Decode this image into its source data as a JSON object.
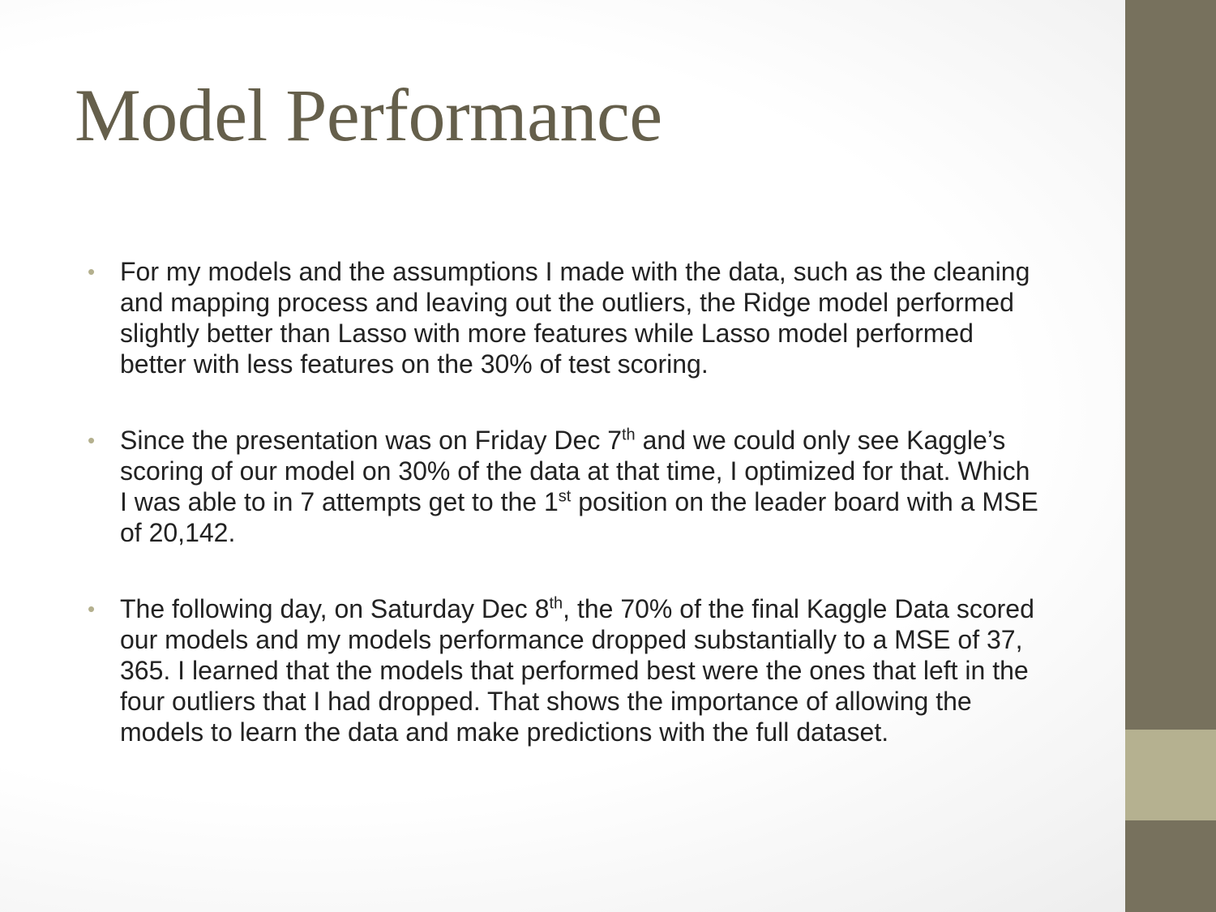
{
  "slide": {
    "title": "Model Performance",
    "bullet_glyph": "•",
    "bullets": [
      {
        "text": "For my models and the assumptions I made with the data, such as the cleaning and mapping process and leaving out the outliers, the Ridge model performed slightly better than Lasso with more features while Lasso model performed better with less features  on the 30% of test scoring."
      },
      {
        "text_a": "Since the presentation was on Friday Dec 7",
        "sup_a": "th",
        "text_b": " and we could only see Kaggle’s scoring of our model on 30% of the data at that time, I optimized for that. Which I was able to in 7 attempts get to the 1",
        "sup_b": "st",
        "text_c": " position on the leader board with a MSE of 20,142."
      },
      {
        "text_a": "The following day, on Saturday Dec 8",
        "sup_a": "th",
        "text_b": ", the 70% of the final Kaggle Data scored our models and my models performance dropped substantially to a MSE of 37, 365. I learned that the models that performed best were the ones that left in the four outliers that I had dropped. That shows the importance of allowing the models to learn the data and make predictions with the full dataset."
      }
    ]
  },
  "colors": {
    "title": "#655f4b",
    "text": "#222222",
    "bullet": "#b4b08e",
    "sidebar": "#77715d",
    "sidebar_accent": "#b5b190"
  }
}
